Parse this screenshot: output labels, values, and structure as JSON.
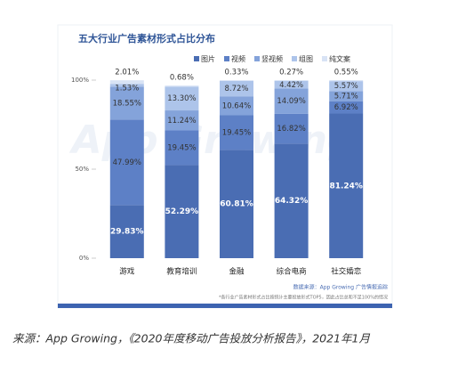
{
  "chart_data": {
    "type": "stacked_bar",
    "title": "五大行业广告素材形式占比分布",
    "categories": [
      "游戏",
      "教育培训",
      "金融",
      "综合电商",
      "社交婚恋"
    ],
    "series": [
      {
        "name": "图片",
        "color": "#4a6db3",
        "values": [
          29.83,
          52.29,
          60.81,
          64.32,
          81.24
        ],
        "value_labels": [
          "29.83%",
          "52.29%",
          "60.81%",
          "64.32%",
          "81.24%"
        ]
      },
      {
        "name": "视频",
        "color": "#5d80c6",
        "values": [
          47.99,
          19.45,
          19.45,
          16.82,
          6.92
        ],
        "value_labels": [
          "47.99%",
          "19.45%",
          "19.45%",
          "16.82%",
          "6.92%"
        ]
      },
      {
        "name": "竖视频",
        "color": "#84a3da",
        "values": [
          18.55,
          11.24,
          10.64,
          14.09,
          5.71
        ],
        "value_labels": [
          "18.55%",
          "11.24%",
          "10.64%",
          "14.09%",
          "5.71%"
        ]
      },
      {
        "name": "组图",
        "color": "#adc4ea",
        "values": [
          1.53,
          13.3,
          8.72,
          4.42,
          5.57
        ],
        "value_labels": [
          "1.53%",
          "13.30%",
          "8.72%",
          "4.42%",
          "5.57%"
        ]
      },
      {
        "name": "纯文案",
        "color": "#d8e3f5",
        "values": [
          2.01,
          0.68,
          0.33,
          0.27,
          0.55
        ],
        "value_labels": [
          "2.01%",
          "0.68%",
          "0.33%",
          "0.27%",
          "0.55%"
        ]
      }
    ],
    "ylim": [
      0,
      100
    ],
    "yticks": [
      {
        "value": 0,
        "label": "0%"
      },
      {
        "value": 50,
        "label": "50%"
      },
      {
        "value": 100,
        "label": "100%"
      }
    ],
    "watermark": "App Growing",
    "source": "数据来源：App Growing 广告情报追踪",
    "footnote": "*各行业广告素材形式占比按统计主要投放形式TOP5，因此占比总和不足100%的情况",
    "caption": "来源：App Growing，《2020年度移动广告投放分析报告》，2021年1月"
  }
}
